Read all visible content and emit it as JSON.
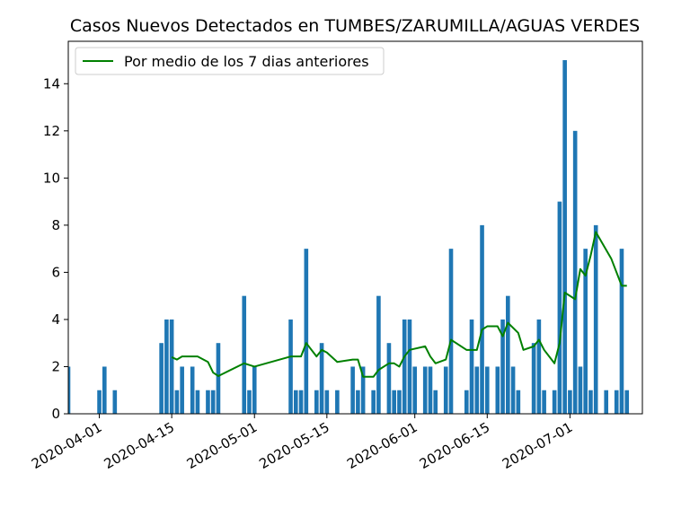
{
  "chart_data": {
    "type": "bar",
    "title": "Casos Nuevos Detectados en TUMBES/ZARUMILLA/AGUAS VERDES",
    "xlabel": "",
    "ylabel": "",
    "xlim": [
      "2020-03-26",
      "2020-07-15"
    ],
    "ylim": [
      0,
      15.8
    ],
    "yticks": [
      0,
      2,
      4,
      6,
      8,
      10,
      12,
      14
    ],
    "xticks": [
      "2020-04-01",
      "2020-04-15",
      "2020-05-01",
      "2020-05-15",
      "2020-06-01",
      "2020-06-15",
      "2020-07-01"
    ],
    "bar_color": "#1f77b4",
    "line_color": "#008000",
    "legend": {
      "position": "top-left",
      "entries": [
        "Por medio de los 7 dias anteriores"
      ]
    },
    "series": [
      {
        "type": "bar",
        "points": [
          [
            "2020-03-26",
            2
          ],
          [
            "2020-04-01",
            1
          ],
          [
            "2020-04-02",
            2
          ],
          [
            "2020-04-04",
            1
          ],
          [
            "2020-04-13",
            3
          ],
          [
            "2020-04-14",
            4
          ],
          [
            "2020-04-15",
            4
          ],
          [
            "2020-04-16",
            1
          ],
          [
            "2020-04-17",
            2
          ],
          [
            "2020-04-19",
            2
          ],
          [
            "2020-04-20",
            1
          ],
          [
            "2020-04-22",
            1
          ],
          [
            "2020-04-23",
            1
          ],
          [
            "2020-04-24",
            3
          ],
          [
            "2020-04-29",
            5
          ],
          [
            "2020-04-30",
            1
          ],
          [
            "2020-05-01",
            2
          ],
          [
            "2020-05-08",
            4
          ],
          [
            "2020-05-09",
            1
          ],
          [
            "2020-05-10",
            1
          ],
          [
            "2020-05-11",
            7
          ],
          [
            "2020-05-13",
            1
          ],
          [
            "2020-05-14",
            3
          ],
          [
            "2020-05-15",
            1
          ],
          [
            "2020-05-17",
            1
          ],
          [
            "2020-05-20",
            2
          ],
          [
            "2020-05-21",
            1
          ],
          [
            "2020-05-22",
            2
          ],
          [
            "2020-05-24",
            1
          ],
          [
            "2020-05-25",
            5
          ],
          [
            "2020-05-27",
            3
          ],
          [
            "2020-05-28",
            1
          ],
          [
            "2020-05-29",
            1
          ],
          [
            "2020-05-30",
            4
          ],
          [
            "2020-05-31",
            4
          ],
          [
            "2020-06-01",
            2
          ],
          [
            "2020-06-03",
            2
          ],
          [
            "2020-06-04",
            2
          ],
          [
            "2020-06-05",
            1
          ],
          [
            "2020-06-07",
            2
          ],
          [
            "2020-06-08",
            7
          ],
          [
            "2020-06-11",
            1
          ],
          [
            "2020-06-12",
            4
          ],
          [
            "2020-06-13",
            2
          ],
          [
            "2020-06-14",
            8
          ],
          [
            "2020-06-15",
            2
          ],
          [
            "2020-06-17",
            2
          ],
          [
            "2020-06-18",
            4
          ],
          [
            "2020-06-19",
            5
          ],
          [
            "2020-06-20",
            2
          ],
          [
            "2020-06-21",
            1
          ],
          [
            "2020-06-24",
            3
          ],
          [
            "2020-06-25",
            4
          ],
          [
            "2020-06-26",
            1
          ],
          [
            "2020-06-28",
            1
          ],
          [
            "2020-06-29",
            9
          ],
          [
            "2020-06-30",
            15
          ],
          [
            "2020-07-01",
            1
          ],
          [
            "2020-07-02",
            12
          ],
          [
            "2020-07-03",
            2
          ],
          [
            "2020-07-04",
            7
          ],
          [
            "2020-07-05",
            1
          ],
          [
            "2020-07-06",
            8
          ],
          [
            "2020-07-08",
            1
          ],
          [
            "2020-07-10",
            1
          ],
          [
            "2020-07-11",
            7
          ],
          [
            "2020-07-12",
            1
          ]
        ]
      },
      {
        "type": "line",
        "name": "Por medio de los 7 dias anteriores",
        "points": [
          [
            "2020-04-15",
            2.4
          ],
          [
            "2020-04-16",
            2.3
          ],
          [
            "2020-04-17",
            2.43
          ],
          [
            "2020-04-20",
            2.43
          ],
          [
            "2020-04-22",
            2.2
          ],
          [
            "2020-04-23",
            1.75
          ],
          [
            "2020-04-24",
            1.6
          ],
          [
            "2020-04-29",
            2.14
          ],
          [
            "2020-05-01",
            2.0
          ],
          [
            "2020-05-08",
            2.43
          ],
          [
            "2020-05-10",
            2.43
          ],
          [
            "2020-05-11",
            3.0
          ],
          [
            "2020-05-13",
            2.43
          ],
          [
            "2020-05-14",
            2.71
          ],
          [
            "2020-05-15",
            2.6
          ],
          [
            "2020-05-17",
            2.2
          ],
          [
            "2020-05-20",
            2.3
          ],
          [
            "2020-05-21",
            2.3
          ],
          [
            "2020-05-22",
            1.57
          ],
          [
            "2020-05-24",
            1.57
          ],
          [
            "2020-05-25",
            1.86
          ],
          [
            "2020-05-27",
            2.14
          ],
          [
            "2020-05-28",
            2.14
          ],
          [
            "2020-05-29",
            2.0
          ],
          [
            "2020-05-30",
            2.43
          ],
          [
            "2020-05-31",
            2.71
          ],
          [
            "2020-06-03",
            2.86
          ],
          [
            "2020-06-04",
            2.43
          ],
          [
            "2020-06-05",
            2.14
          ],
          [
            "2020-06-07",
            2.3
          ],
          [
            "2020-06-08",
            3.14
          ],
          [
            "2020-06-11",
            2.71
          ],
          [
            "2020-06-13",
            2.71
          ],
          [
            "2020-06-14",
            3.57
          ],
          [
            "2020-06-15",
            3.71
          ],
          [
            "2020-06-17",
            3.71
          ],
          [
            "2020-06-18",
            3.29
          ],
          [
            "2020-06-19",
            3.86
          ],
          [
            "2020-06-21",
            3.43
          ],
          [
            "2020-06-22",
            2.71
          ],
          [
            "2020-06-24",
            2.86
          ],
          [
            "2020-06-25",
            3.14
          ],
          [
            "2020-06-26",
            2.71
          ],
          [
            "2020-06-28",
            2.14
          ],
          [
            "2020-06-29",
            3.0
          ],
          [
            "2020-06-30",
            5.14
          ],
          [
            "2020-07-02",
            4.86
          ],
          [
            "2020-07-03",
            6.14
          ],
          [
            "2020-07-04",
            5.86
          ],
          [
            "2020-07-05",
            6.71
          ],
          [
            "2020-07-06",
            7.71
          ],
          [
            "2020-07-09",
            6.57
          ],
          [
            "2020-07-11",
            5.43
          ],
          [
            "2020-07-12",
            5.43
          ]
        ]
      }
    ]
  }
}
